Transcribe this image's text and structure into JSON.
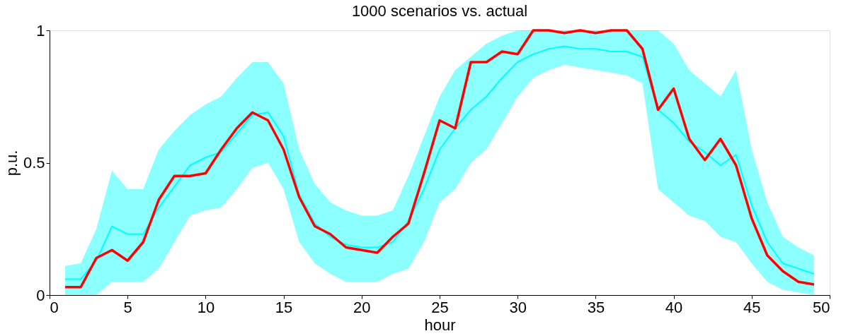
{
  "chart_data": {
    "type": "line",
    "title": "1000 scenarios vs. actual",
    "xlabel": "hour",
    "ylabel": "p.u.",
    "x": [
      1,
      2,
      3,
      4,
      5,
      6,
      7,
      8,
      9,
      10,
      11,
      12,
      13,
      14,
      15,
      16,
      17,
      18,
      19,
      20,
      21,
      22,
      23,
      24,
      25,
      26,
      27,
      28,
      29,
      30,
      31,
      32,
      33,
      34,
      35,
      36,
      37,
      38,
      39,
      40,
      41,
      42,
      43,
      44,
      45,
      46,
      47,
      48,
      49
    ],
    "series": [
      {
        "color": "#00ffff",
        "values": [
          0.06,
          0.06,
          0.13,
          0.26,
          0.23,
          0.23,
          0.33,
          0.41,
          0.49,
          0.52,
          0.54,
          0.61,
          0.68,
          0.69,
          0.6,
          0.38,
          0.27,
          0.22,
          0.19,
          0.18,
          0.18,
          0.2,
          0.28,
          0.4,
          0.55,
          0.63,
          0.7,
          0.75,
          0.82,
          0.88,
          0.91,
          0.93,
          0.94,
          0.93,
          0.93,
          0.92,
          0.92,
          0.9,
          0.7,
          0.65,
          0.58,
          0.54,
          0.49,
          0.53,
          0.34,
          0.2,
          0.12,
          0.1,
          0.08
        ],
        "lower": [
          0,
          0,
          0,
          0.05,
          0.05,
          0.05,
          0.1,
          0.2,
          0.3,
          0.32,
          0.33,
          0.4,
          0.48,
          0.5,
          0.4,
          0.2,
          0.12,
          0.08,
          0.05,
          0.05,
          0.05,
          0.08,
          0.1,
          0.2,
          0.35,
          0.4,
          0.5,
          0.55,
          0.65,
          0.75,
          0.82,
          0.85,
          0.87,
          0.86,
          0.85,
          0.84,
          0.83,
          0.8,
          0.4,
          0.35,
          0.3,
          0.28,
          0.22,
          0.2,
          0.12,
          0.05,
          0.02,
          0.01,
          0
        ],
        "upper": [
          0.11,
          0.12,
          0.25,
          0.47,
          0.4,
          0.4,
          0.55,
          0.62,
          0.68,
          0.72,
          0.75,
          0.82,
          0.88,
          0.88,
          0.8,
          0.55,
          0.42,
          0.35,
          0.32,
          0.3,
          0.3,
          0.32,
          0.45,
          0.6,
          0.75,
          0.85,
          0.9,
          0.95,
          0.98,
          1,
          1,
          1,
          1,
          1,
          1,
          1,
          1,
          1,
          1,
          0.95,
          0.85,
          0.8,
          0.75,
          0.85,
          0.55,
          0.35,
          0.22,
          0.18,
          0.15
        ]
      },
      {
        "color": "#ff0000",
        "values": [
          0.03,
          0.03,
          0.14,
          0.17,
          0.13,
          0.2,
          0.36,
          0.45,
          0.45,
          0.46,
          0.55,
          0.63,
          0.69,
          0.66,
          0.55,
          0.37,
          0.26,
          0.23,
          0.18,
          0.17,
          0.16,
          0.22,
          0.27,
          0.46,
          0.66,
          0.63,
          0.88,
          0.88,
          0.92,
          0.91,
          1,
          1,
          0.99,
          1,
          0.99,
          1,
          1,
          0.93,
          0.7,
          0.78,
          0.59,
          0.51,
          0.59,
          0.49,
          0.29,
          0.15,
          0.09,
          0.05,
          0.04
        ]
      }
    ],
    "xlim": [
      0,
      50
    ],
    "xticks": [
      0,
      5,
      10,
      15,
      20,
      25,
      30,
      35,
      40,
      45,
      50
    ],
    "ylim": [
      0,
      1
    ],
    "yticks": [
      0,
      0.5,
      1
    ],
    "grid": false,
    "marker": "none",
    "line_style": "solid"
  }
}
